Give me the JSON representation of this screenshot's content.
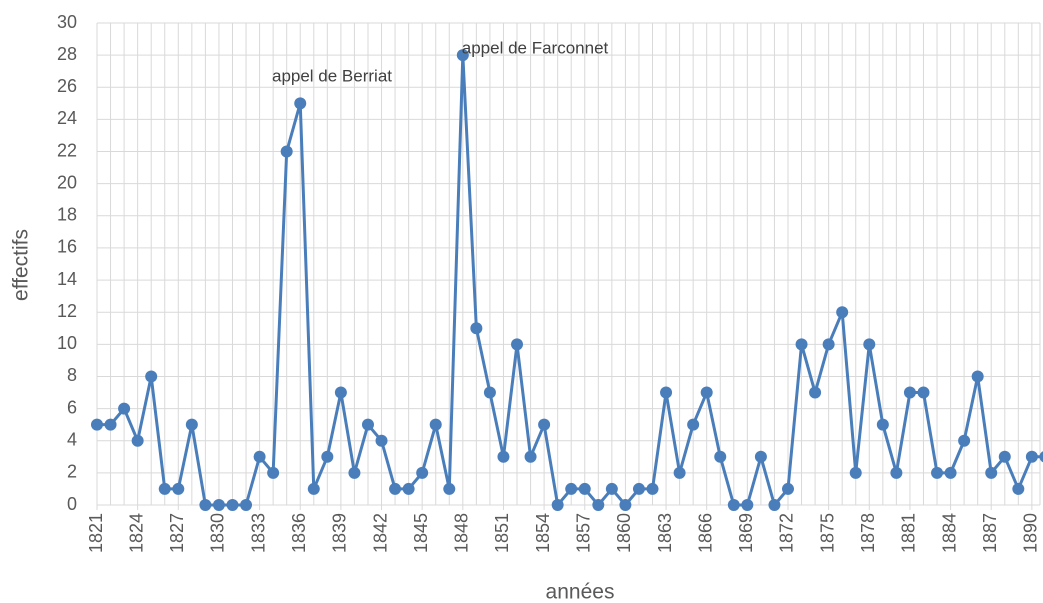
{
  "chart_data": {
    "type": "line",
    "xlabel": "années",
    "ylabel": "effectifs",
    "annotations": [
      "appel de Berriat",
      "appel de Farconnet"
    ],
    "x": [
      1821,
      1822,
      1823,
      1824,
      1825,
      1826,
      1827,
      1828,
      1829,
      1830,
      1831,
      1832,
      1833,
      1834,
      1835,
      1836,
      1837,
      1838,
      1839,
      1840,
      1841,
      1842,
      1843,
      1844,
      1845,
      1846,
      1847,
      1848,
      1849,
      1850,
      1851,
      1852,
      1853,
      1854,
      1855,
      1856,
      1857,
      1858,
      1859,
      1860,
      1861,
      1862,
      1863,
      1864,
      1865,
      1866,
      1867,
      1868,
      1869,
      1870,
      1871,
      1872,
      1873,
      1874,
      1875,
      1876,
      1877,
      1878,
      1879,
      1880,
      1881,
      1882,
      1883,
      1884,
      1885,
      1886,
      1887,
      1888,
      1889,
      1890,
      1891
    ],
    "series": [
      {
        "name": "effectifs",
        "color": "#4a7ebb",
        "values": [
          5,
          5,
          6,
          4,
          8,
          1,
          1,
          5,
          0,
          0,
          0,
          0,
          3,
          2,
          22,
          25,
          1,
          3,
          7,
          2,
          5,
          4,
          1,
          1,
          2,
          5,
          1,
          28,
          11,
          7,
          3,
          10,
          3,
          5,
          0,
          1,
          1,
          0,
          1,
          0,
          1,
          1,
          7,
          2,
          5,
          7,
          3,
          0,
          0,
          3,
          0,
          1,
          10,
          7,
          10,
          12,
          2,
          10,
          5,
          2,
          7,
          7,
          2,
          2,
          4,
          8,
          2,
          3,
          1,
          3,
          3
        ]
      }
    ],
    "xlim": [
      1821,
      1890.6
    ],
    "xticks": [
      1821,
      1824,
      1827,
      1830,
      1833,
      1836,
      1839,
      1842,
      1845,
      1848,
      1851,
      1854,
      1857,
      1860,
      1863,
      1866,
      1869,
      1872,
      1875,
      1878,
      1881,
      1884,
      1887,
      1890
    ],
    "ylim": [
      0,
      30
    ],
    "yticks": [
      0,
      2,
      4,
      6,
      8,
      10,
      12,
      14,
      16,
      18,
      20,
      22,
      24,
      26,
      28,
      30
    ],
    "grid": true
  }
}
